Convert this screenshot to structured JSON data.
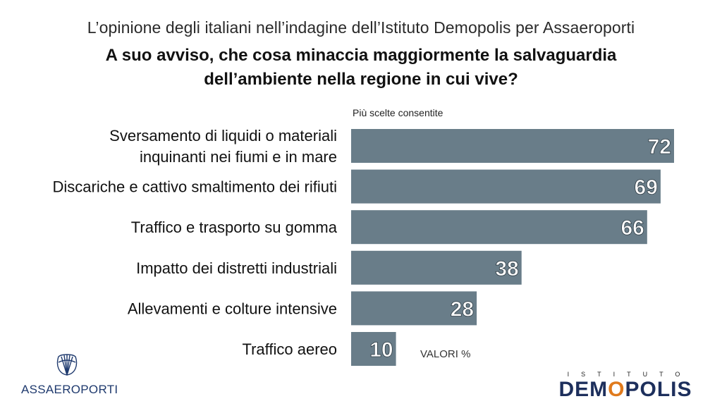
{
  "header": {
    "subtitle": "L’opinione degli italiani nell’indagine dell’Istituto Demopolis per Assaeroporti",
    "title_line1": "A suo avviso, che cosa minaccia maggiormente la salvaguardia",
    "title_line2": "dell’ambiente nella regione in cui vive?"
  },
  "notes": {
    "multi": "Più scelte consentite",
    "unit": "VALORI %"
  },
  "logos": {
    "left": "ASSAEROPORTI",
    "right_small": "ISTITUTO",
    "right_big_pre": "DEM",
    "right_big_o": "O",
    "right_big_post": "POLIS"
  },
  "chart_data": {
    "type": "bar",
    "orientation": "horizontal",
    "categories": [
      [
        "Sversamento di liquidi o materiali",
        "inquinanti nei fiumi e in mare"
      ],
      [
        "Discariche e cattivo smaltimento dei rifiuti"
      ],
      [
        "Traffico e trasporto su gomma"
      ],
      [
        "Impatto dei distretti industriali"
      ],
      [
        "Allevamenti e colture intensive"
      ],
      [
        "Traffico aereo"
      ]
    ],
    "values": [
      72,
      69,
      66,
      38,
      28,
      10
    ],
    "xlim": [
      0,
      72
    ],
    "bar_color": "#697d89",
    "label_color": "#ffffff"
  }
}
